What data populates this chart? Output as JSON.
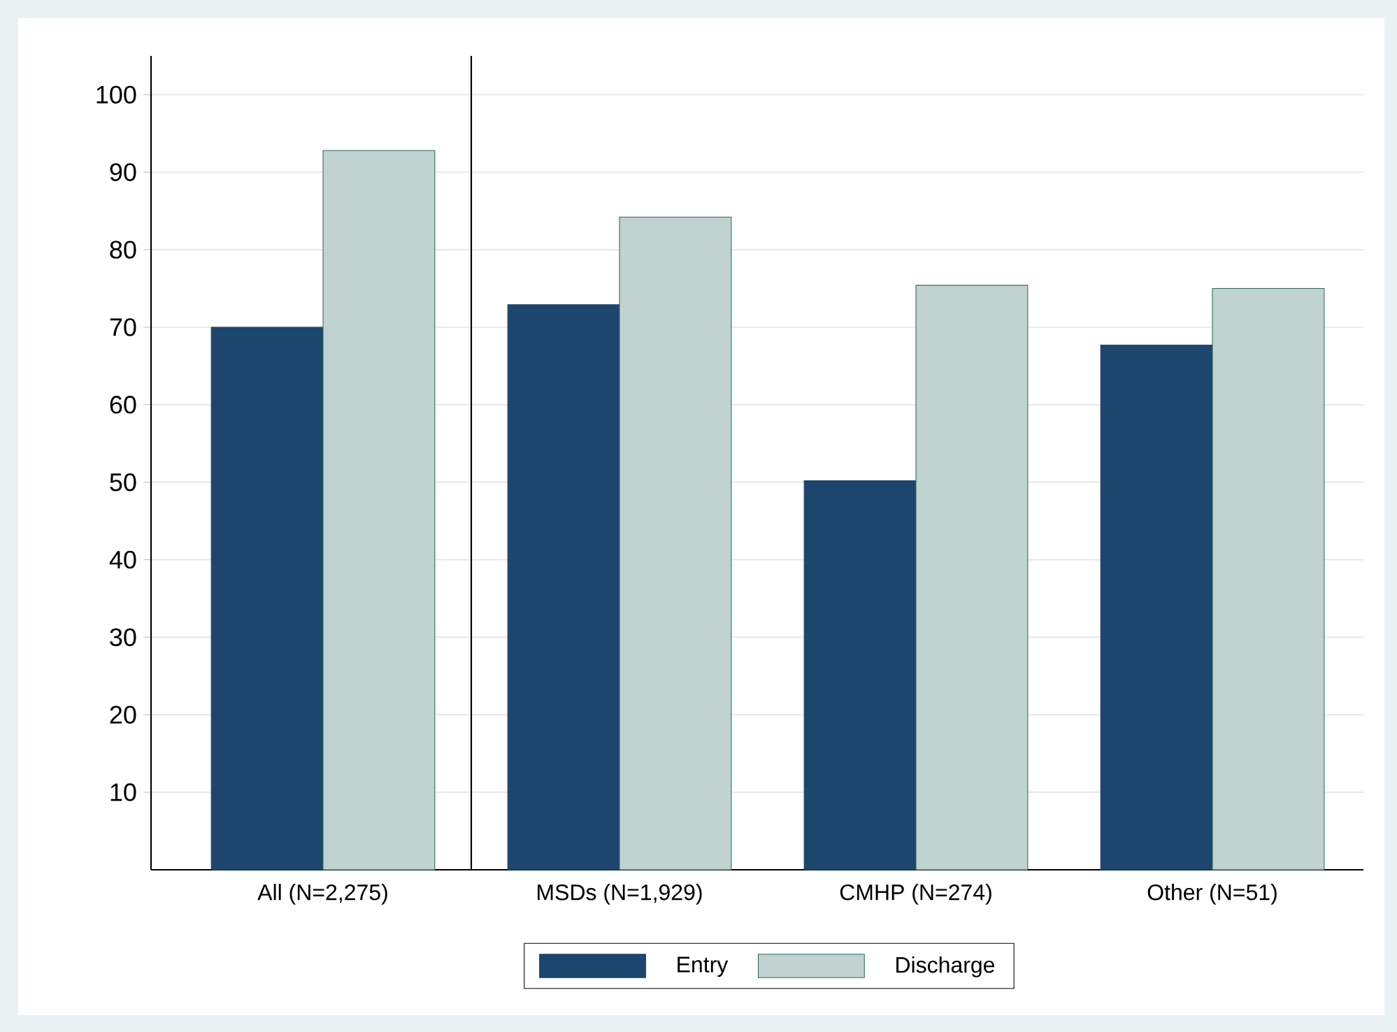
{
  "chart_data": [
    {
      "type": "bar",
      "categories": [
        "All (N=2,275)"
      ],
      "series": [
        {
          "name": "Entry",
          "color": "#1c466e",
          "values": [
            70.0
          ]
        },
        {
          "name": "Discharge",
          "color": "#c0d3d0",
          "values": [
            92.8
          ]
        }
      ],
      "ylim": [
        0,
        105
      ],
      "yticks": [
        10,
        20,
        30,
        40,
        50,
        60,
        70,
        80,
        90,
        100
      ],
      "grid": "y",
      "legend": "bottom"
    },
    {
      "type": "bar",
      "categories": [
        "MSDs (N=1,929)",
        "CMHP (N=274)",
        "Other (N=51)"
      ],
      "series": [
        {
          "color": "#1c466e",
          "values": [
            72.9,
            50.2,
            67.7
          ]
        },
        {
          "color": "#c0d3d0",
          "values": [
            84.2,
            75.4,
            75.0
          ]
        }
      ],
      "ylim": [
        0,
        105
      ],
      "yticks": [
        10,
        20,
        30,
        40,
        50,
        60,
        70,
        80,
        90,
        100
      ],
      "grid": "y",
      "tick_labels": "x"
    }
  ]
}
